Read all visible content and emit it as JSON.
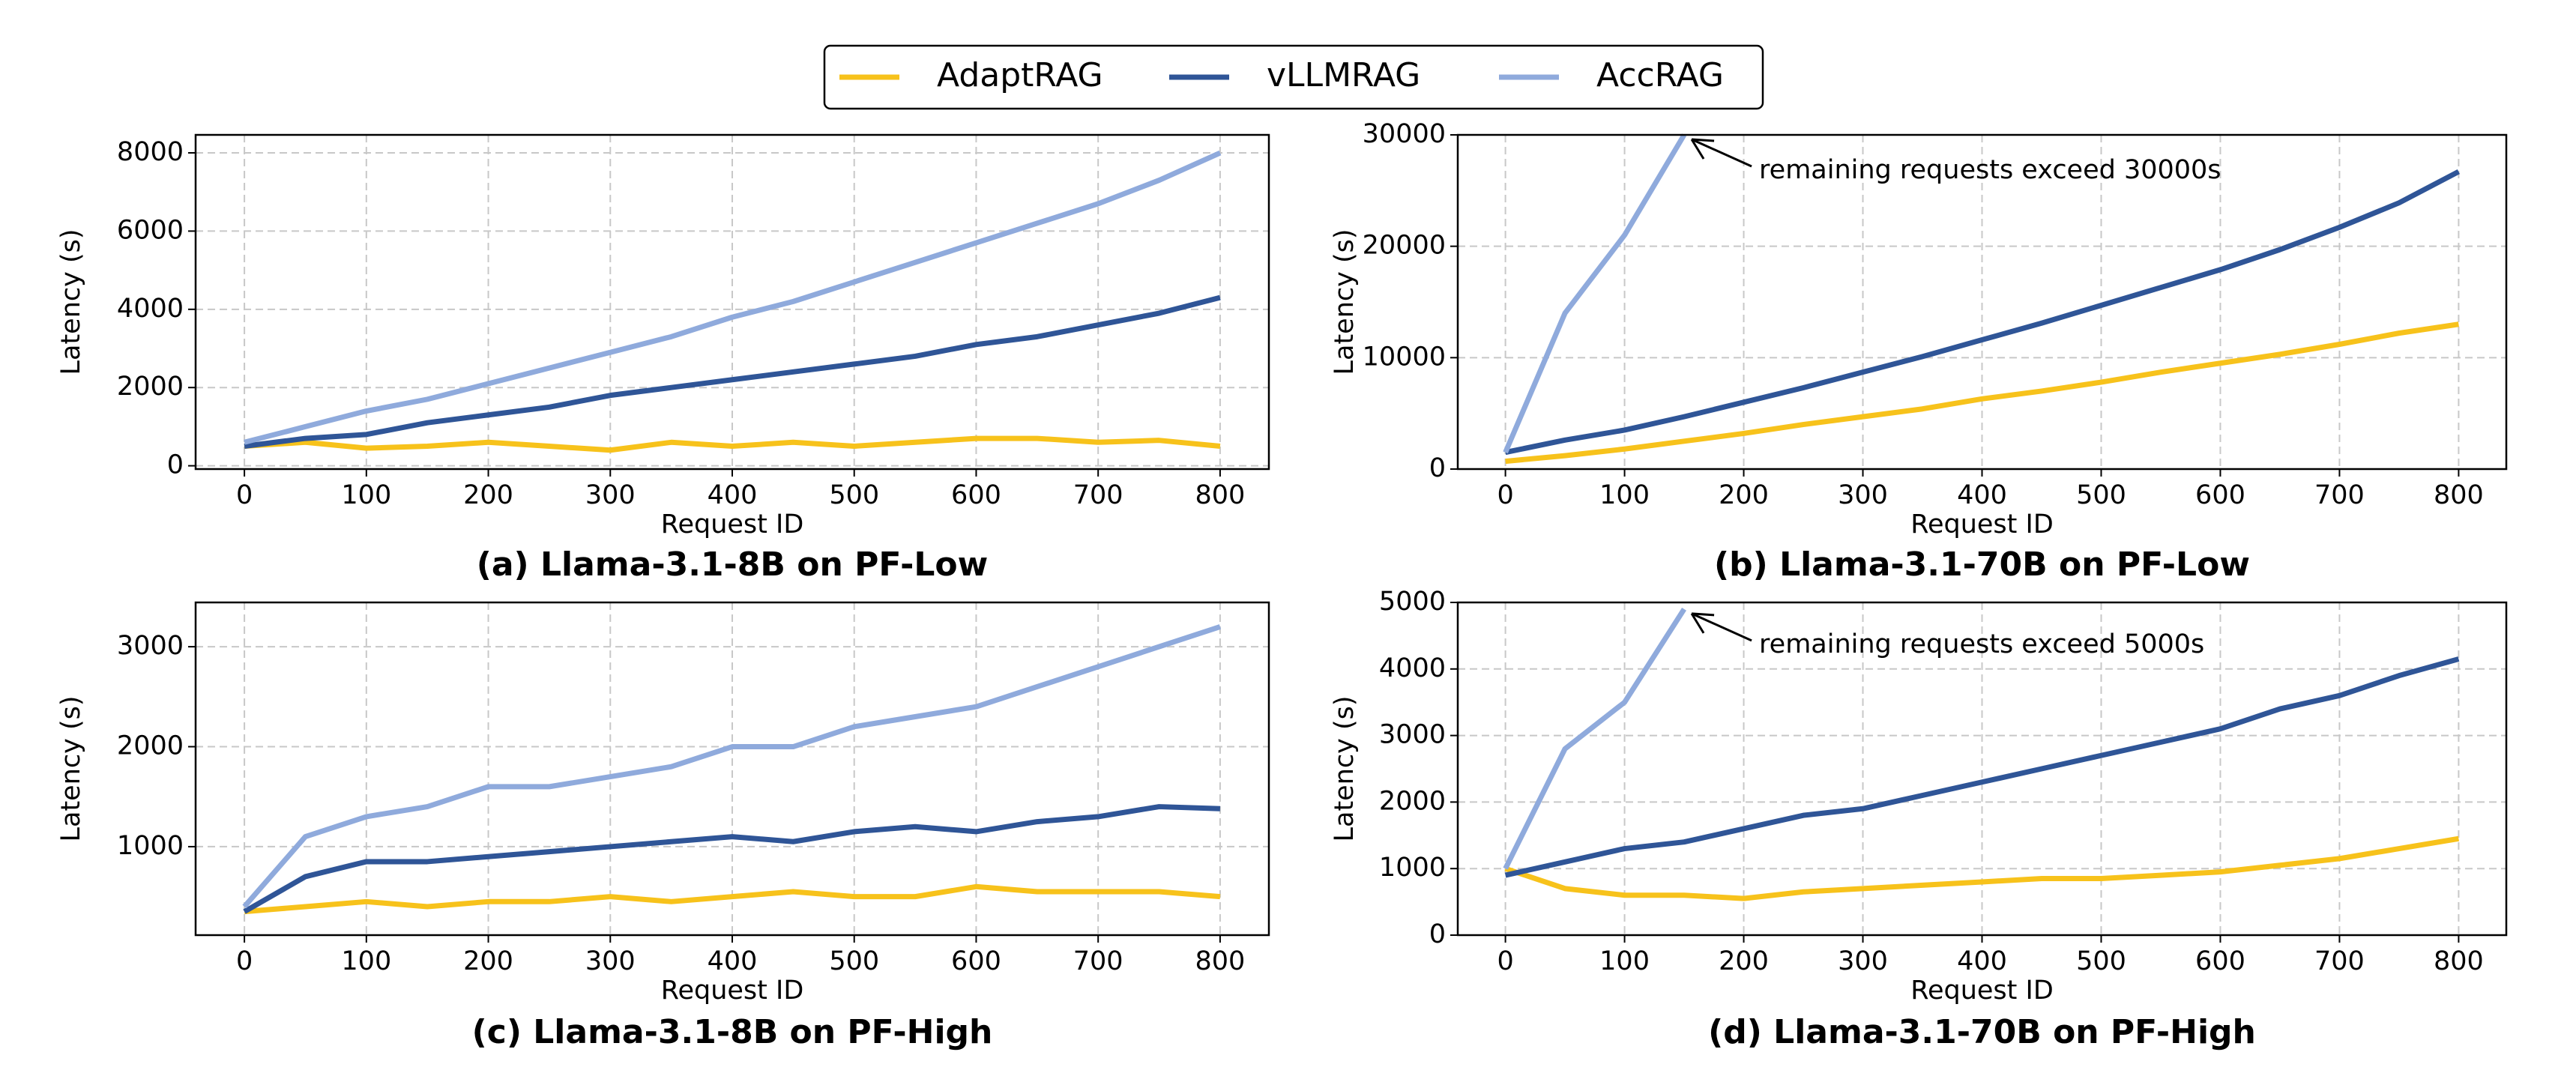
{
  "chart_data": [
    {
      "type": "line",
      "title": "(a) Llama-3.1-8B on PF-Low",
      "xlabel": "Request ID",
      "ylabel": "Latency (s)",
      "x": [
        0,
        50,
        100,
        150,
        200,
        250,
        300,
        350,
        400,
        450,
        500,
        550,
        600,
        650,
        700,
        750,
        800
      ],
      "series": [
        {
          "name": "AdaptRAG",
          "color": "#f7c21b",
          "values": [
            500,
            600,
            450,
            500,
            600,
            500,
            400,
            600,
            500,
            600,
            500,
            600,
            700,
            700,
            600,
            650,
            500
          ]
        },
        {
          "name": "vLLMRAG",
          "color": "#2f5597",
          "values": [
            500,
            700,
            800,
            1100,
            1300,
            1500,
            1800,
            2000,
            2200,
            2400,
            2600,
            2800,
            3100,
            3300,
            3600,
            3900,
            4300
          ]
        },
        {
          "name": "AccRAG",
          "color": "#8faadc",
          "values": [
            600,
            1000,
            1400,
            1700,
            2100,
            2500,
            2900,
            3300,
            3800,
            4200,
            4700,
            5200,
            5700,
            6200,
            6700,
            7300,
            8000
          ]
        }
      ],
      "xlim": [
        -40,
        840
      ],
      "ylim": [
        -84,
        8460
      ],
      "xticks": [
        0,
        100,
        200,
        300,
        400,
        500,
        600,
        700,
        800
      ],
      "yticks": [
        0,
        2000,
        4000,
        6000,
        8000
      ],
      "grid": true
    },
    {
      "type": "line",
      "title": "(b) Llama-3.1-70B on PF-Low",
      "xlabel": "Request ID",
      "ylabel": "Latency (s)",
      "annotation": "remaining requests exceed 30000s",
      "x": [
        0,
        50,
        100,
        150,
        200,
        250,
        300,
        350,
        400,
        450,
        500,
        550,
        600,
        650,
        700,
        750,
        800
      ],
      "series": [
        {
          "name": "AdaptRAG",
          "color": "#f7c21b",
          "values": [
            700,
            1200,
            1800,
            2500,
            3200,
            4000,
            4700,
            5400,
            6300,
            7000,
            7800,
            8700,
            9500,
            10300,
            11200,
            12200,
            13000
          ]
        },
        {
          "name": "vLLMRAG",
          "color": "#2f5597",
          "values": [
            1500,
            2600,
            3500,
            4700,
            6000,
            7300,
            8700,
            10100,
            11600,
            13100,
            14700,
            16300,
            17900,
            19700,
            21700,
            23900,
            26700
          ]
        },
        {
          "name": "AccRAG",
          "color": "#8faadc",
          "values": [
            1500,
            14000,
            21000,
            30000,
            null,
            null,
            null,
            null,
            null,
            null,
            null,
            null,
            null,
            null,
            null,
            null,
            null
          ]
        }
      ],
      "xlim": [
        -40,
        840
      ],
      "ylim": [
        0,
        30000
      ],
      "xticks": [
        0,
        100,
        200,
        300,
        400,
        500,
        600,
        700,
        800
      ],
      "yticks": [
        0,
        10000,
        20000,
        30000
      ],
      "grid": true
    },
    {
      "type": "line",
      "title": "(c) Llama-3.1-8B on PF-High",
      "xlabel": "Request ID",
      "ylabel": "Latency (s)",
      "x": [
        0,
        50,
        100,
        150,
        200,
        250,
        300,
        350,
        400,
        450,
        500,
        550,
        600,
        650,
        700,
        750,
        800
      ],
      "series": [
        {
          "name": "AdaptRAG",
          "color": "#f7c21b",
          "values": [
            350,
            400,
            450,
            400,
            450,
            450,
            500,
            450,
            500,
            550,
            500,
            500,
            600,
            550,
            550,
            550,
            500
          ]
        },
        {
          "name": "vLLMRAG",
          "color": "#2f5597",
          "values": [
            350,
            700,
            850,
            850,
            900,
            950,
            1000,
            1050,
            1100,
            1050,
            1150,
            1200,
            1150,
            1250,
            1300,
            1400,
            1380
          ]
        },
        {
          "name": "AccRAG",
          "color": "#8faadc",
          "values": [
            400,
            1100,
            1300,
            1400,
            1600,
            1600,
            1700,
            1800,
            2000,
            2000,
            2200,
            2300,
            2400,
            2600,
            2800,
            3000,
            3200
          ]
        }
      ],
      "xlim": [
        -40,
        840
      ],
      "ylim": [
        115,
        3443
      ],
      "xticks": [
        0,
        100,
        200,
        300,
        400,
        500,
        600,
        700,
        800
      ],
      "yticks": [
        1000,
        2000,
        3000
      ],
      "grid": true
    },
    {
      "type": "line",
      "title": "(d) Llama-3.1-70B on PF-High",
      "xlabel": "Request ID",
      "ylabel": "Latency (s)",
      "annotation": "remaining requests exceed 5000s",
      "x": [
        0,
        50,
        100,
        150,
        200,
        250,
        300,
        350,
        400,
        450,
        500,
        550,
        600,
        650,
        700,
        750,
        800
      ],
      "series": [
        {
          "name": "AdaptRAG",
          "color": "#f7c21b",
          "values": [
            1000,
            700,
            600,
            600,
            550,
            650,
            700,
            750,
            800,
            850,
            850,
            900,
            950,
            1050,
            1150,
            1300,
            1450
          ]
        },
        {
          "name": "vLLMRAG",
          "color": "#2f5597",
          "values": [
            900,
            1100,
            1300,
            1400,
            1600,
            1800,
            1900,
            2100,
            2300,
            2500,
            2700,
            2900,
            3100,
            3400,
            3600,
            3900,
            4150
          ]
        },
        {
          "name": "AccRAG",
          "color": "#8faadc",
          "values": [
            1000,
            2800,
            3500,
            4900,
            null,
            null,
            null,
            null,
            null,
            null,
            null,
            null,
            null,
            null,
            null,
            null,
            null
          ]
        }
      ],
      "xlim": [
        -40,
        840
      ],
      "ylim": [
        0,
        5000
      ],
      "xticks": [
        0,
        100,
        200,
        300,
        400,
        500,
        600,
        700,
        800
      ],
      "yticks": [
        0,
        1000,
        2000,
        3000,
        4000,
        5000
      ],
      "grid": true
    }
  ]
}
